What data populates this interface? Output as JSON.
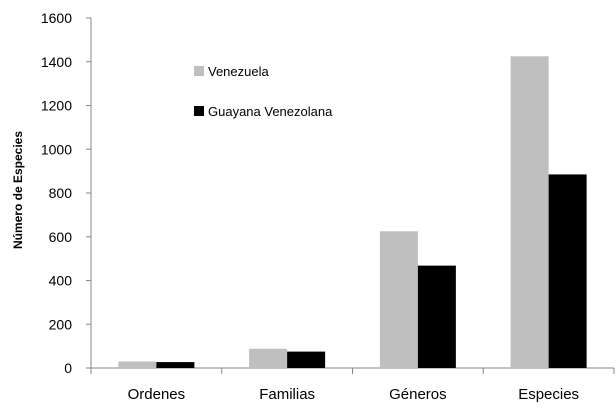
{
  "chart_data": {
    "type": "bar",
    "categories": [
      "Ordenes",
      "Familias",
      "Géneros",
      "Especies"
    ],
    "series": [
      {
        "name": "Venezuela",
        "values": [
          30,
          88,
          625,
          1425
        ],
        "color": "#bfbfbf"
      },
      {
        "name": "Guayana Venezolana",
        "values": [
          27,
          75,
          468,
          885
        ],
        "color": "#000000"
      }
    ],
    "ylabel": "Número de Especies",
    "xlabel": "",
    "title": "",
    "ylim": [
      0,
      1600
    ],
    "yticks": [
      0,
      200,
      400,
      600,
      800,
      1000,
      1200,
      1400,
      1600
    ],
    "grid": false,
    "legend_position": "top-left-inside"
  }
}
